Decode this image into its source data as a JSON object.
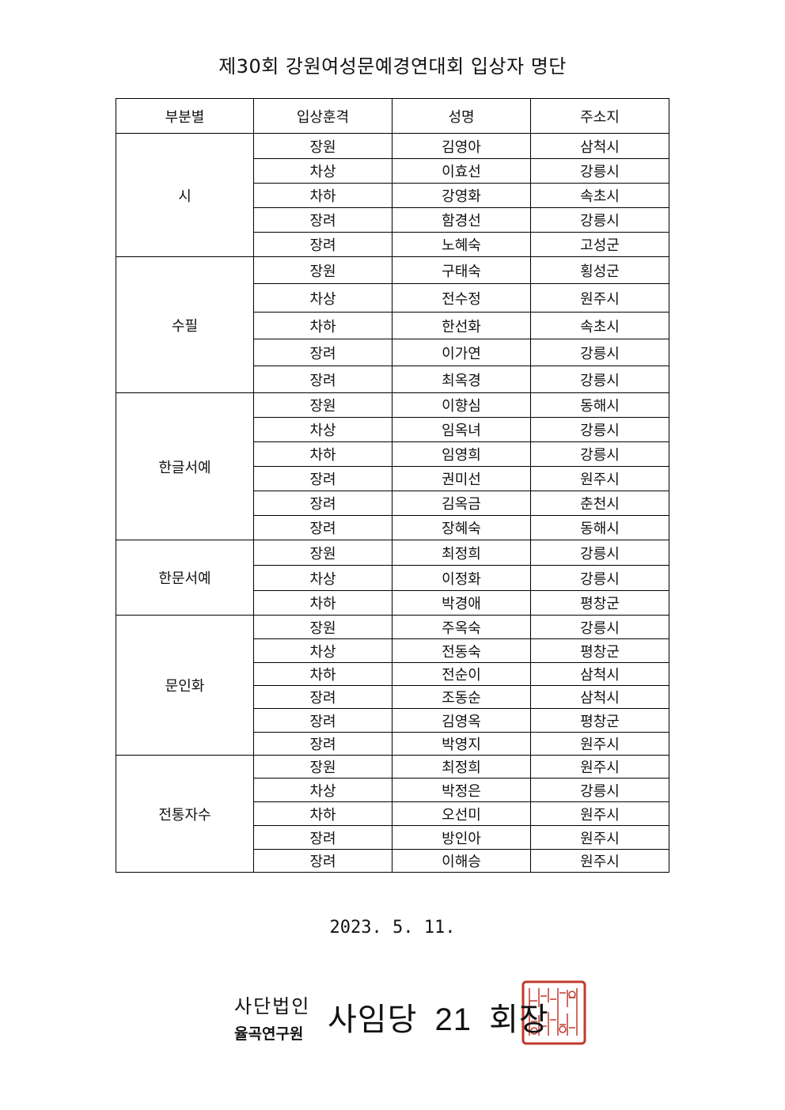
{
  "title": "제30회 강원여성문예경연대회 입상자 명단",
  "table": {
    "headers": [
      "부분별",
      "입상훈격",
      "성명",
      "주소지"
    ],
    "sections": [
      {
        "category": "시",
        "rows": [
          [
            "장원",
            "김영아",
            "삼척시"
          ],
          [
            "차상",
            "이효선",
            "강릉시"
          ],
          [
            "차하",
            "강영화",
            "속초시"
          ],
          [
            "장려",
            "함경선",
            "강릉시"
          ],
          [
            "장려",
            "노혜숙",
            "고성군"
          ]
        ]
      },
      {
        "category": "수필",
        "rows": [
          [
            "장원",
            "구태숙",
            "횡성군"
          ],
          [
            "차상",
            "전수정",
            "원주시"
          ],
          [
            "차하",
            "한선화",
            "속초시"
          ],
          [
            "장려",
            "이가연",
            "강릉시"
          ],
          [
            "장려",
            "최옥경",
            "강릉시"
          ]
        ]
      },
      {
        "category": "한글서예",
        "rows": [
          [
            "장원",
            "이향심",
            "동해시"
          ],
          [
            "차상",
            "임옥녀",
            "강릉시"
          ],
          [
            "차하",
            "임영희",
            "강릉시"
          ],
          [
            "장려",
            "권미선",
            "원주시"
          ],
          [
            "장려",
            "김옥금",
            "춘천시"
          ],
          [
            "장려",
            "장혜숙",
            "동해시"
          ]
        ]
      },
      {
        "category": "한문서예",
        "rows": [
          [
            "장원",
            "최정희",
            "강릉시"
          ],
          [
            "차상",
            "이정화",
            "강릉시"
          ],
          [
            "차하",
            "박경애",
            "평창군"
          ]
        ]
      },
      {
        "category": "문인화",
        "rows": [
          [
            "장원",
            "주옥숙",
            "강릉시"
          ],
          [
            "차상",
            "전동숙",
            "평창군"
          ],
          [
            "차하",
            "전순이",
            "삼척시"
          ],
          [
            "장려",
            "조동순",
            "삼척시"
          ],
          [
            "장려",
            "김영옥",
            "평창군"
          ],
          [
            "장려",
            "박영지",
            "원주시"
          ]
        ]
      },
      {
        "category": "전통자수",
        "rows": [
          [
            "장원",
            "최정희",
            "원주시"
          ],
          [
            "차상",
            "박정은",
            "강릉시"
          ],
          [
            "차하",
            "오선미",
            "원주시"
          ],
          [
            "장려",
            "방인아",
            "원주시"
          ],
          [
            "장려",
            "이해승",
            "원주시"
          ]
        ]
      }
    ]
  },
  "date": "2023. 5. 11.",
  "signature": {
    "org_line1": "사단법인",
    "org_line2": "율곡연구원",
    "chair": "사임당 21 회장",
    "seal_color": "#c0392b"
  }
}
